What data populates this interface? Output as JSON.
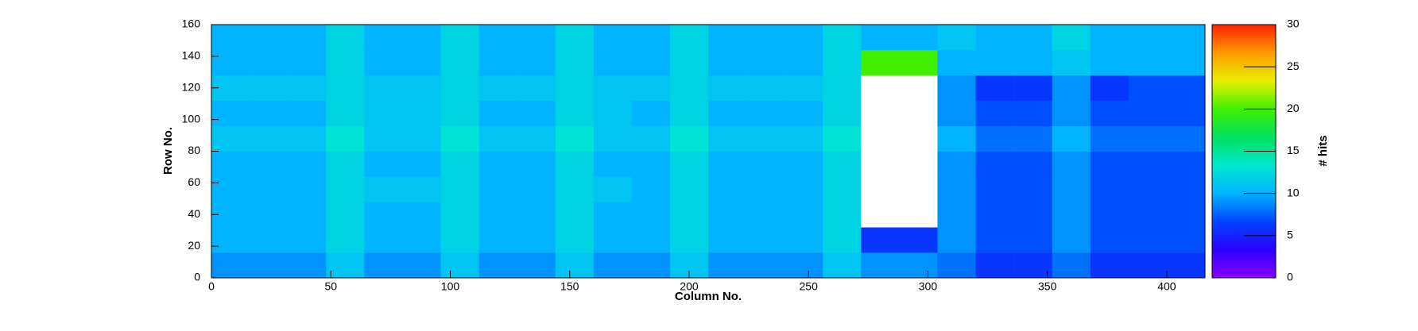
{
  "chart_data": {
    "type": "heatmap",
    "xlabel": "Column No.",
    "ylabel": "Row No.",
    "zlabel": "# hits",
    "xbins": [
      0,
      16,
      32,
      48,
      64,
      80,
      96,
      112,
      128,
      144,
      160,
      176,
      192,
      208,
      224,
      240,
      256,
      272,
      288,
      304,
      320,
      336,
      352,
      368,
      384,
      400,
      416
    ],
    "ybins": [
      0,
      16,
      32,
      48,
      64,
      80,
      96,
      112,
      128,
      144,
      160
    ],
    "z": [
      [
        9,
        9,
        9,
        11,
        9,
        9,
        11,
        9,
        9,
        11,
        9,
        9,
        11,
        9,
        9,
        9,
        11,
        9,
        9,
        8,
        6,
        6,
        8,
        6,
        6,
        6
      ],
      [
        10,
        10,
        10,
        12,
        10,
        10,
        12,
        10,
        10,
        12,
        10,
        10,
        12,
        10,
        10,
        10,
        12,
        6,
        6,
        9,
        7,
        7,
        9,
        7,
        7,
        7
      ],
      [
        10,
        10,
        10,
        12,
        10,
        10,
        12,
        10,
        10,
        12,
        10,
        10,
        12,
        10,
        10,
        10,
        12,
        35,
        35,
        9,
        7,
        7,
        9,
        7,
        7,
        7
      ],
      [
        10,
        10,
        10,
        12,
        11,
        11,
        12,
        10,
        10,
        12,
        11,
        10,
        12,
        10,
        10,
        10,
        12,
        35,
        35,
        9,
        7,
        7,
        9,
        7,
        7,
        7
      ],
      [
        10,
        10,
        10,
        12,
        10,
        10,
        12,
        10,
        10,
        12,
        10,
        10,
        12,
        10,
        10,
        10,
        12,
        35,
        35,
        9,
        7,
        7,
        9,
        7,
        7,
        7
      ],
      [
        11,
        11,
        11,
        13,
        11,
        11,
        13,
        11,
        11,
        13,
        11,
        11,
        13,
        11,
        11,
        11,
        13,
        35,
        35,
        10,
        8,
        8,
        10,
        8,
        8,
        8
      ],
      [
        10,
        10,
        10,
        12,
        11,
        11,
        12,
        10,
        10,
        12,
        11,
        10,
        12,
        10,
        10,
        10,
        12,
        35,
        35,
        9,
        7,
        7,
        9,
        7,
        7,
        7
      ],
      [
        11,
        11,
        11,
        12,
        11,
        11,
        12,
        11,
        11,
        12,
        11,
        11,
        12,
        11,
        11,
        11,
        12,
        35,
        35,
        9,
        6,
        6,
        9,
        6,
        7,
        7
      ],
      [
        10,
        10,
        10,
        12,
        10,
        10,
        12,
        10,
        10,
        12,
        10,
        10,
        12,
        10,
        10,
        10,
        12,
        20,
        20,
        10,
        10,
        10,
        11,
        10,
        10,
        10
      ],
      [
        10,
        10,
        10,
        12,
        10,
        10,
        12,
        10,
        10,
        12,
        10,
        10,
        12,
        10,
        10,
        10,
        12,
        10,
        10,
        11,
        10,
        10,
        12,
        10,
        10,
        10
      ]
    ],
    "xlim": [
      0,
      416
    ],
    "ylim": [
      0,
      160
    ],
    "zlim": [
      0,
      30
    ],
    "xticks": [
      0,
      50,
      100,
      150,
      200,
      250,
      300,
      350,
      400
    ],
    "yticks": [
      0,
      20,
      40,
      60,
      80,
      100,
      120,
      140,
      160
    ],
    "zticks": [
      0,
      5,
      10,
      15,
      20,
      25,
      30
    ],
    "colorscale": [
      "#8a00ff",
      "#2a00ff",
      "#0044ff",
      "#00b4ff",
      "#00e8d0",
      "#00e060",
      "#40f000",
      "#e8f000",
      "#ff9a00",
      "#ff2000"
    ],
    "overflow_color": "#ffffff"
  }
}
